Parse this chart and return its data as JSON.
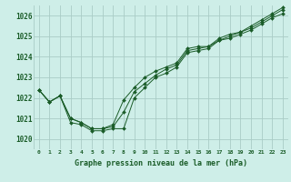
{
  "title": "Graphe pression niveau de la mer (hPa)",
  "bg_color": "#ceeee8",
  "grid_color": "#aaccc6",
  "line_color": "#1a5c28",
  "marker_color": "#1a5c28",
  "xlim": [
    -0.5,
    23.5
  ],
  "ylim": [
    1019.5,
    1026.5
  ],
  "yticks": [
    1020,
    1021,
    1022,
    1023,
    1024,
    1025,
    1026
  ],
  "xtick_labels": [
    "0",
    "1",
    "2",
    "3",
    "4",
    "5",
    "6",
    "7",
    "8",
    "9",
    "10",
    "11",
    "12",
    "13",
    "14",
    "15",
    "16",
    "17",
    "18",
    "19",
    "20",
    "21",
    "22",
    "23"
  ],
  "series": [
    [
      1022.4,
      1021.8,
      1022.1,
      1020.8,
      1020.7,
      1020.4,
      1020.4,
      1020.5,
      1020.5,
      1022.0,
      1022.5,
      1023.0,
      1023.2,
      1023.5,
      1024.2,
      1024.3,
      1024.4,
      1024.8,
      1024.9,
      1025.1,
      1025.3,
      1025.6,
      1025.9,
      1026.1
    ],
    [
      1022.4,
      1021.8,
      1022.1,
      1021.0,
      1020.8,
      1020.5,
      1020.5,
      1020.6,
      1021.3,
      1022.3,
      1022.7,
      1023.1,
      1023.4,
      1023.6,
      1024.3,
      1024.4,
      1024.5,
      1024.8,
      1025.0,
      1025.2,
      1025.4,
      1025.7,
      1026.0,
      1026.3
    ],
    [
      1022.4,
      1021.8,
      1022.1,
      1021.0,
      1020.8,
      1020.5,
      1020.5,
      1020.7,
      1021.9,
      1022.5,
      1023.0,
      1023.3,
      1023.5,
      1023.7,
      1024.4,
      1024.5,
      1024.5,
      1024.9,
      1025.1,
      1025.2,
      1025.5,
      1025.8,
      1026.1,
      1026.4
    ]
  ]
}
